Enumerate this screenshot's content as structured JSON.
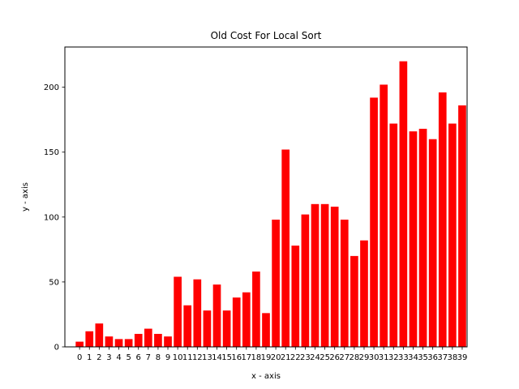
{
  "chart_data": {
    "type": "bar",
    "title": "Old Cost For Local Sort",
    "xlabel": "x - axis",
    "ylabel": "y - axis",
    "categories": [
      "0",
      "1",
      "2",
      "3",
      "4",
      "5",
      "6",
      "7",
      "8",
      "9",
      "10",
      "11",
      "12",
      "13",
      "14",
      "15",
      "16",
      "17",
      "18",
      "19",
      "20",
      "21",
      "22",
      "23",
      "24",
      "25",
      "26",
      "27",
      "28",
      "29",
      "30",
      "31",
      "32",
      "33",
      "34",
      "35",
      "36",
      "37",
      "38",
      "39"
    ],
    "values": [
      4,
      12,
      18,
      8,
      6,
      6,
      10,
      14,
      10,
      8,
      54,
      32,
      52,
      28,
      48,
      28,
      38,
      42,
      58,
      26,
      98,
      152,
      78,
      102,
      110,
      110,
      108,
      98,
      70,
      82,
      192,
      202,
      172,
      220,
      166,
      168,
      160,
      196,
      172,
      186
    ],
    "ylim": [
      0,
      231
    ],
    "yticks": [
      0,
      50,
      100,
      150,
      200
    ],
    "bar_color": "#ff0000",
    "grid": false,
    "legend": "none"
  }
}
